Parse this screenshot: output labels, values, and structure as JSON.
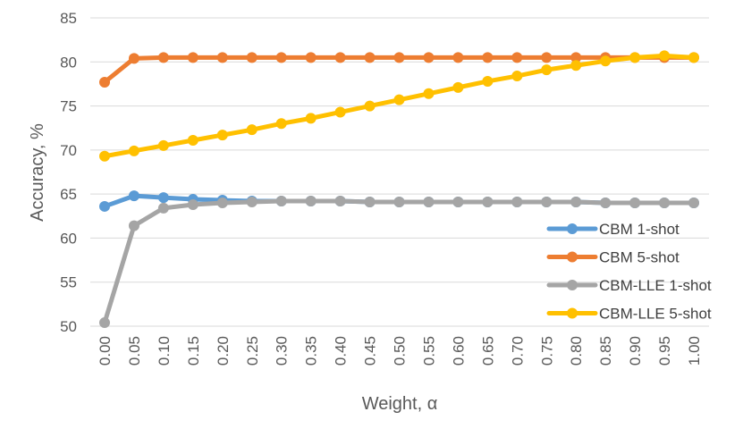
{
  "chart_data": {
    "type": "line",
    "title": "",
    "xlabel": "Weight, α",
    "ylabel": "Accuracy, %",
    "ylim": [
      50,
      85
    ],
    "yticks": [
      50,
      55,
      60,
      65,
      70,
      75,
      80,
      85
    ],
    "grid": true,
    "legend_position": "right",
    "x": [
      "0.00",
      "0.05",
      "0.10",
      "0.15",
      "0.20",
      "0.25",
      "0.30",
      "0.35",
      "0.40",
      "0.45",
      "0.50",
      "0.55",
      "0.60",
      "0.65",
      "0.70",
      "0.75",
      "0.80",
      "0.85",
      "0.90",
      "0.95",
      "1.00"
    ],
    "series": [
      {
        "name": "CBM 1-shot",
        "color": "#5B9BD5",
        "values": [
          63.6,
          64.8,
          64.6,
          64.4,
          64.3,
          64.2,
          64.2,
          64.2,
          64.2,
          64.1,
          64.1,
          64.1,
          64.1,
          64.1,
          64.1,
          64.1,
          64.1,
          64.0,
          64.0,
          64.0,
          64.0
        ]
      },
      {
        "name": "CBM 5-shot",
        "color": "#ED7D31",
        "values": [
          77.7,
          80.4,
          80.5,
          80.5,
          80.5,
          80.5,
          80.5,
          80.5,
          80.5,
          80.5,
          80.5,
          80.5,
          80.5,
          80.5,
          80.5,
          80.5,
          80.5,
          80.5,
          80.5,
          80.5,
          80.5
        ]
      },
      {
        "name": "CBM-LLE 1-shot",
        "color": "#A5A5A5",
        "values": [
          50.4,
          61.4,
          63.4,
          63.8,
          64.0,
          64.1,
          64.2,
          64.2,
          64.2,
          64.1,
          64.1,
          64.1,
          64.1,
          64.1,
          64.1,
          64.1,
          64.1,
          64.0,
          64.0,
          64.0,
          64.0
        ]
      },
      {
        "name": "CBM-LLE 5-shot",
        "color": "#FFC000",
        "values": [
          69.3,
          69.9,
          70.5,
          71.1,
          71.7,
          72.3,
          73.0,
          73.6,
          74.3,
          75.0,
          75.7,
          76.4,
          77.1,
          77.8,
          78.4,
          79.1,
          79.6,
          80.1,
          80.5,
          80.7,
          80.5
        ]
      }
    ]
  }
}
